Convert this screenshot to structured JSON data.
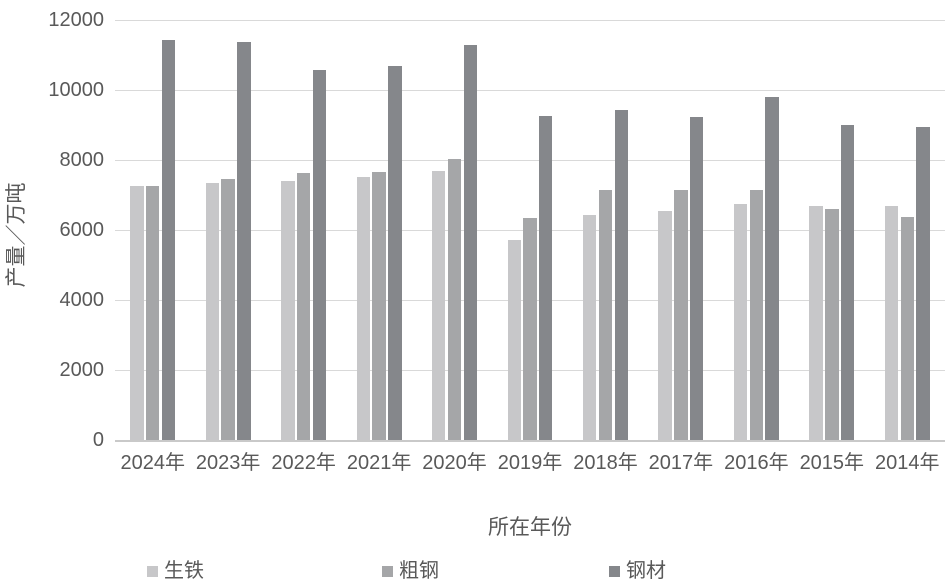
{
  "chart_data": {
    "type": "bar",
    "title": "",
    "xlabel": "所在年份",
    "ylabel": "产量／万吨",
    "categories": [
      "2024年",
      "2023年",
      "2022年",
      "2021年",
      "2020年",
      "2019年",
      "2018年",
      "2017年",
      "2016年",
      "2015年",
      "2014年"
    ],
    "series": [
      {
        "name": "生铁",
        "color": "#c7c7c9",
        "values": [
          7250,
          7330,
          7390,
          7510,
          7680,
          5710,
          6420,
          6550,
          6740,
          6700,
          6690
        ]
      },
      {
        "name": "粗钢",
        "color": "#a5a6a8",
        "values": [
          7250,
          7460,
          7620,
          7660,
          8020,
          6330,
          7140,
          7130,
          7140,
          6590,
          6360
        ]
      },
      {
        "name": "钢材",
        "color": "#85878b",
        "values": [
          11440,
          11370,
          10560,
          10680,
          11280,
          9260,
          9420,
          9220,
          9790,
          9000,
          8940
        ]
      }
    ],
    "ylim": [
      0,
      12000
    ],
    "yticks": [
      0,
      2000,
      4000,
      6000,
      8000,
      10000,
      12000
    ],
    "grid": true,
    "legend_position": "bottom"
  },
  "colors": {
    "text": "#595959",
    "gridline": "#d9d9d9",
    "axis_line": "#c9c9c9",
    "background": "#ffffff"
  }
}
